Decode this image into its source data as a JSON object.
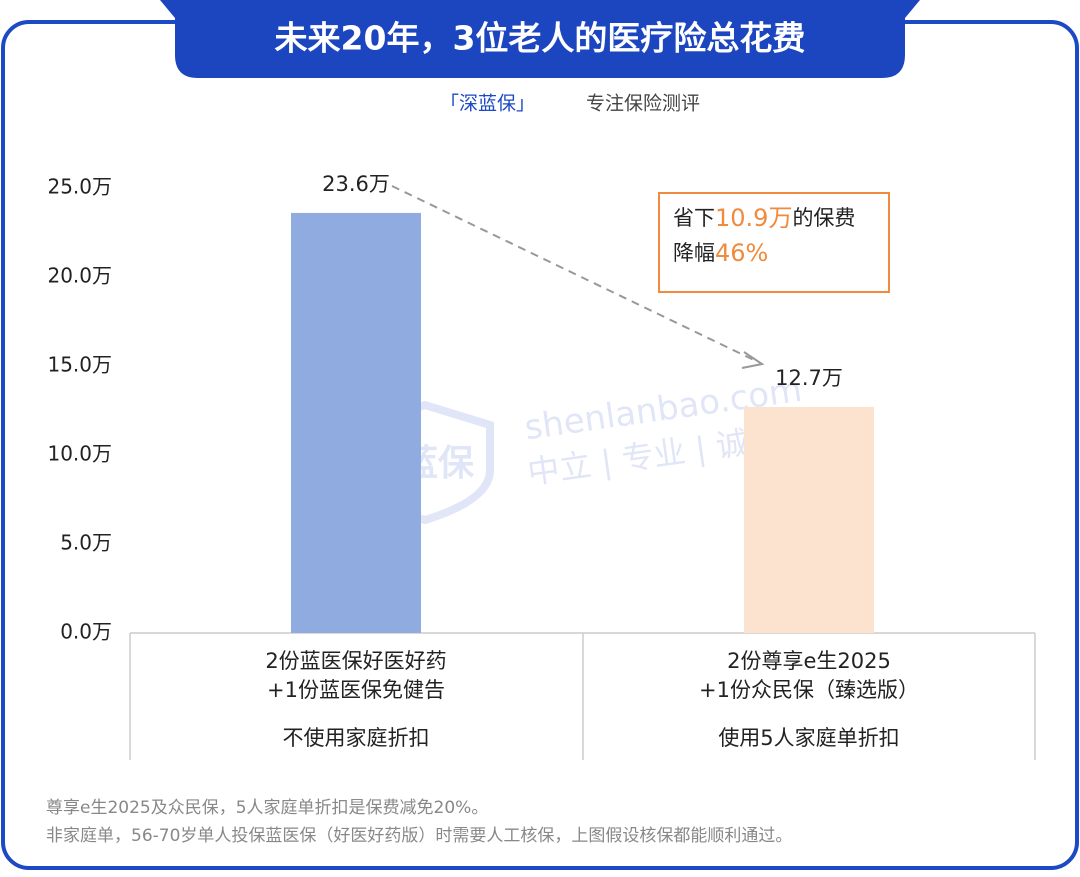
{
  "chart_data": {
    "type": "bar",
    "title": "未来20年，3位老人的医疗险总花费",
    "subtitle": [
      "「深蓝保」",
      "专注保险测评"
    ],
    "categories": [
      [
        "2份蓝医保好医好药",
        "+1份蓝医保免健告"
      ],
      [
        "2份尊享e生2025",
        "+1份众民保（臻选版）"
      ]
    ],
    "category_notes": [
      "不使用家庭折扣",
      "使用5人家庭单折扣"
    ],
    "values": [
      23.6,
      12.7
    ],
    "value_labels": [
      "23.6万",
      "12.7万"
    ],
    "colors": [
      "#8fabe0",
      "#fce3d0"
    ],
    "ylim": [
      0,
      25
    ],
    "yticks": [
      {
        "value": 0,
        "label": "0.0万"
      },
      {
        "value": 5,
        "label": "5.0万"
      },
      {
        "value": 10,
        "label": "10.0万"
      },
      {
        "value": 15,
        "label": "15.0万"
      },
      {
        "value": 20,
        "label": "20.0万"
      },
      {
        "value": 25,
        "label": "25.0万"
      }
    ],
    "annotation": {
      "line1": [
        "省下",
        "10.9万",
        "的保费"
      ],
      "line2": [
        "降幅",
        "46%"
      ]
    },
    "watermark": {
      "logo": "深蓝保",
      "site": "shenlanbao.com",
      "motto": "中立 | 专业 | 诚信"
    },
    "footnotes": [
      "尊享e生2025及众民保，5人家庭单折扣是保费减免20%。",
      "非家庭单，56-70岁单人投保蓝医保（好医好药版）时需要人工核保，上图假设核保都能顺利通过。"
    ]
  }
}
